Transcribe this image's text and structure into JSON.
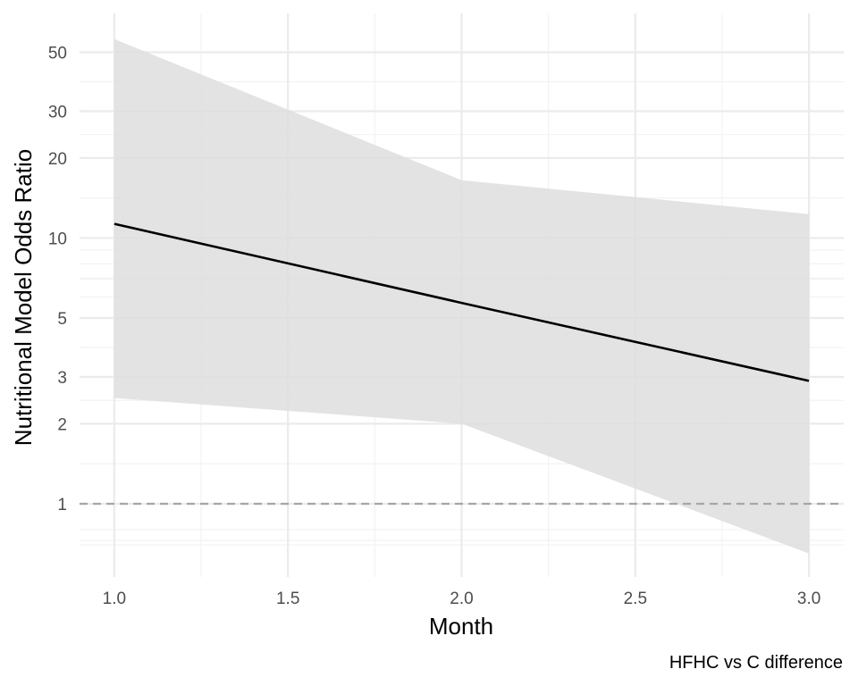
{
  "chart_data": {
    "type": "line",
    "title": "",
    "caption": "HFHC vs C difference",
    "xlabel": "Month",
    "ylabel": "Nutritional Model Odds Ratio",
    "x_scale": "linear",
    "y_scale": "log10",
    "xlim": [
      0.9,
      3.1
    ],
    "ylim": [
      0.53,
      70
    ],
    "x_ticks": [
      1.0,
      1.5,
      2.0,
      2.5,
      3.0
    ],
    "x_tick_labels": [
      "1.0",
      "1.5",
      "2.0",
      "2.5",
      "3.0"
    ],
    "y_ticks": [
      1,
      2,
      3,
      5,
      10,
      20,
      30,
      50
    ],
    "y_tick_labels": [
      "1",
      "2",
      "3",
      "5",
      "10",
      "20",
      "30",
      "50"
    ],
    "grid": true,
    "reference_line": {
      "y": 1,
      "style": "dashed"
    },
    "series": [
      {
        "x": [
          1,
          2,
          3
        ],
        "y": [
          11.3,
          5.7,
          2.9
        ],
        "lower": [
          2.5,
          2.0,
          0.65
        ],
        "upper": [
          56,
          16.5,
          12.3
        ]
      }
    ],
    "colors": {
      "line": "#000000",
      "ribbon": "#dedede",
      "grid_major": "#ebebeb",
      "grid_minor": "#f2f2f2",
      "reference": "#a6a6a6"
    }
  }
}
